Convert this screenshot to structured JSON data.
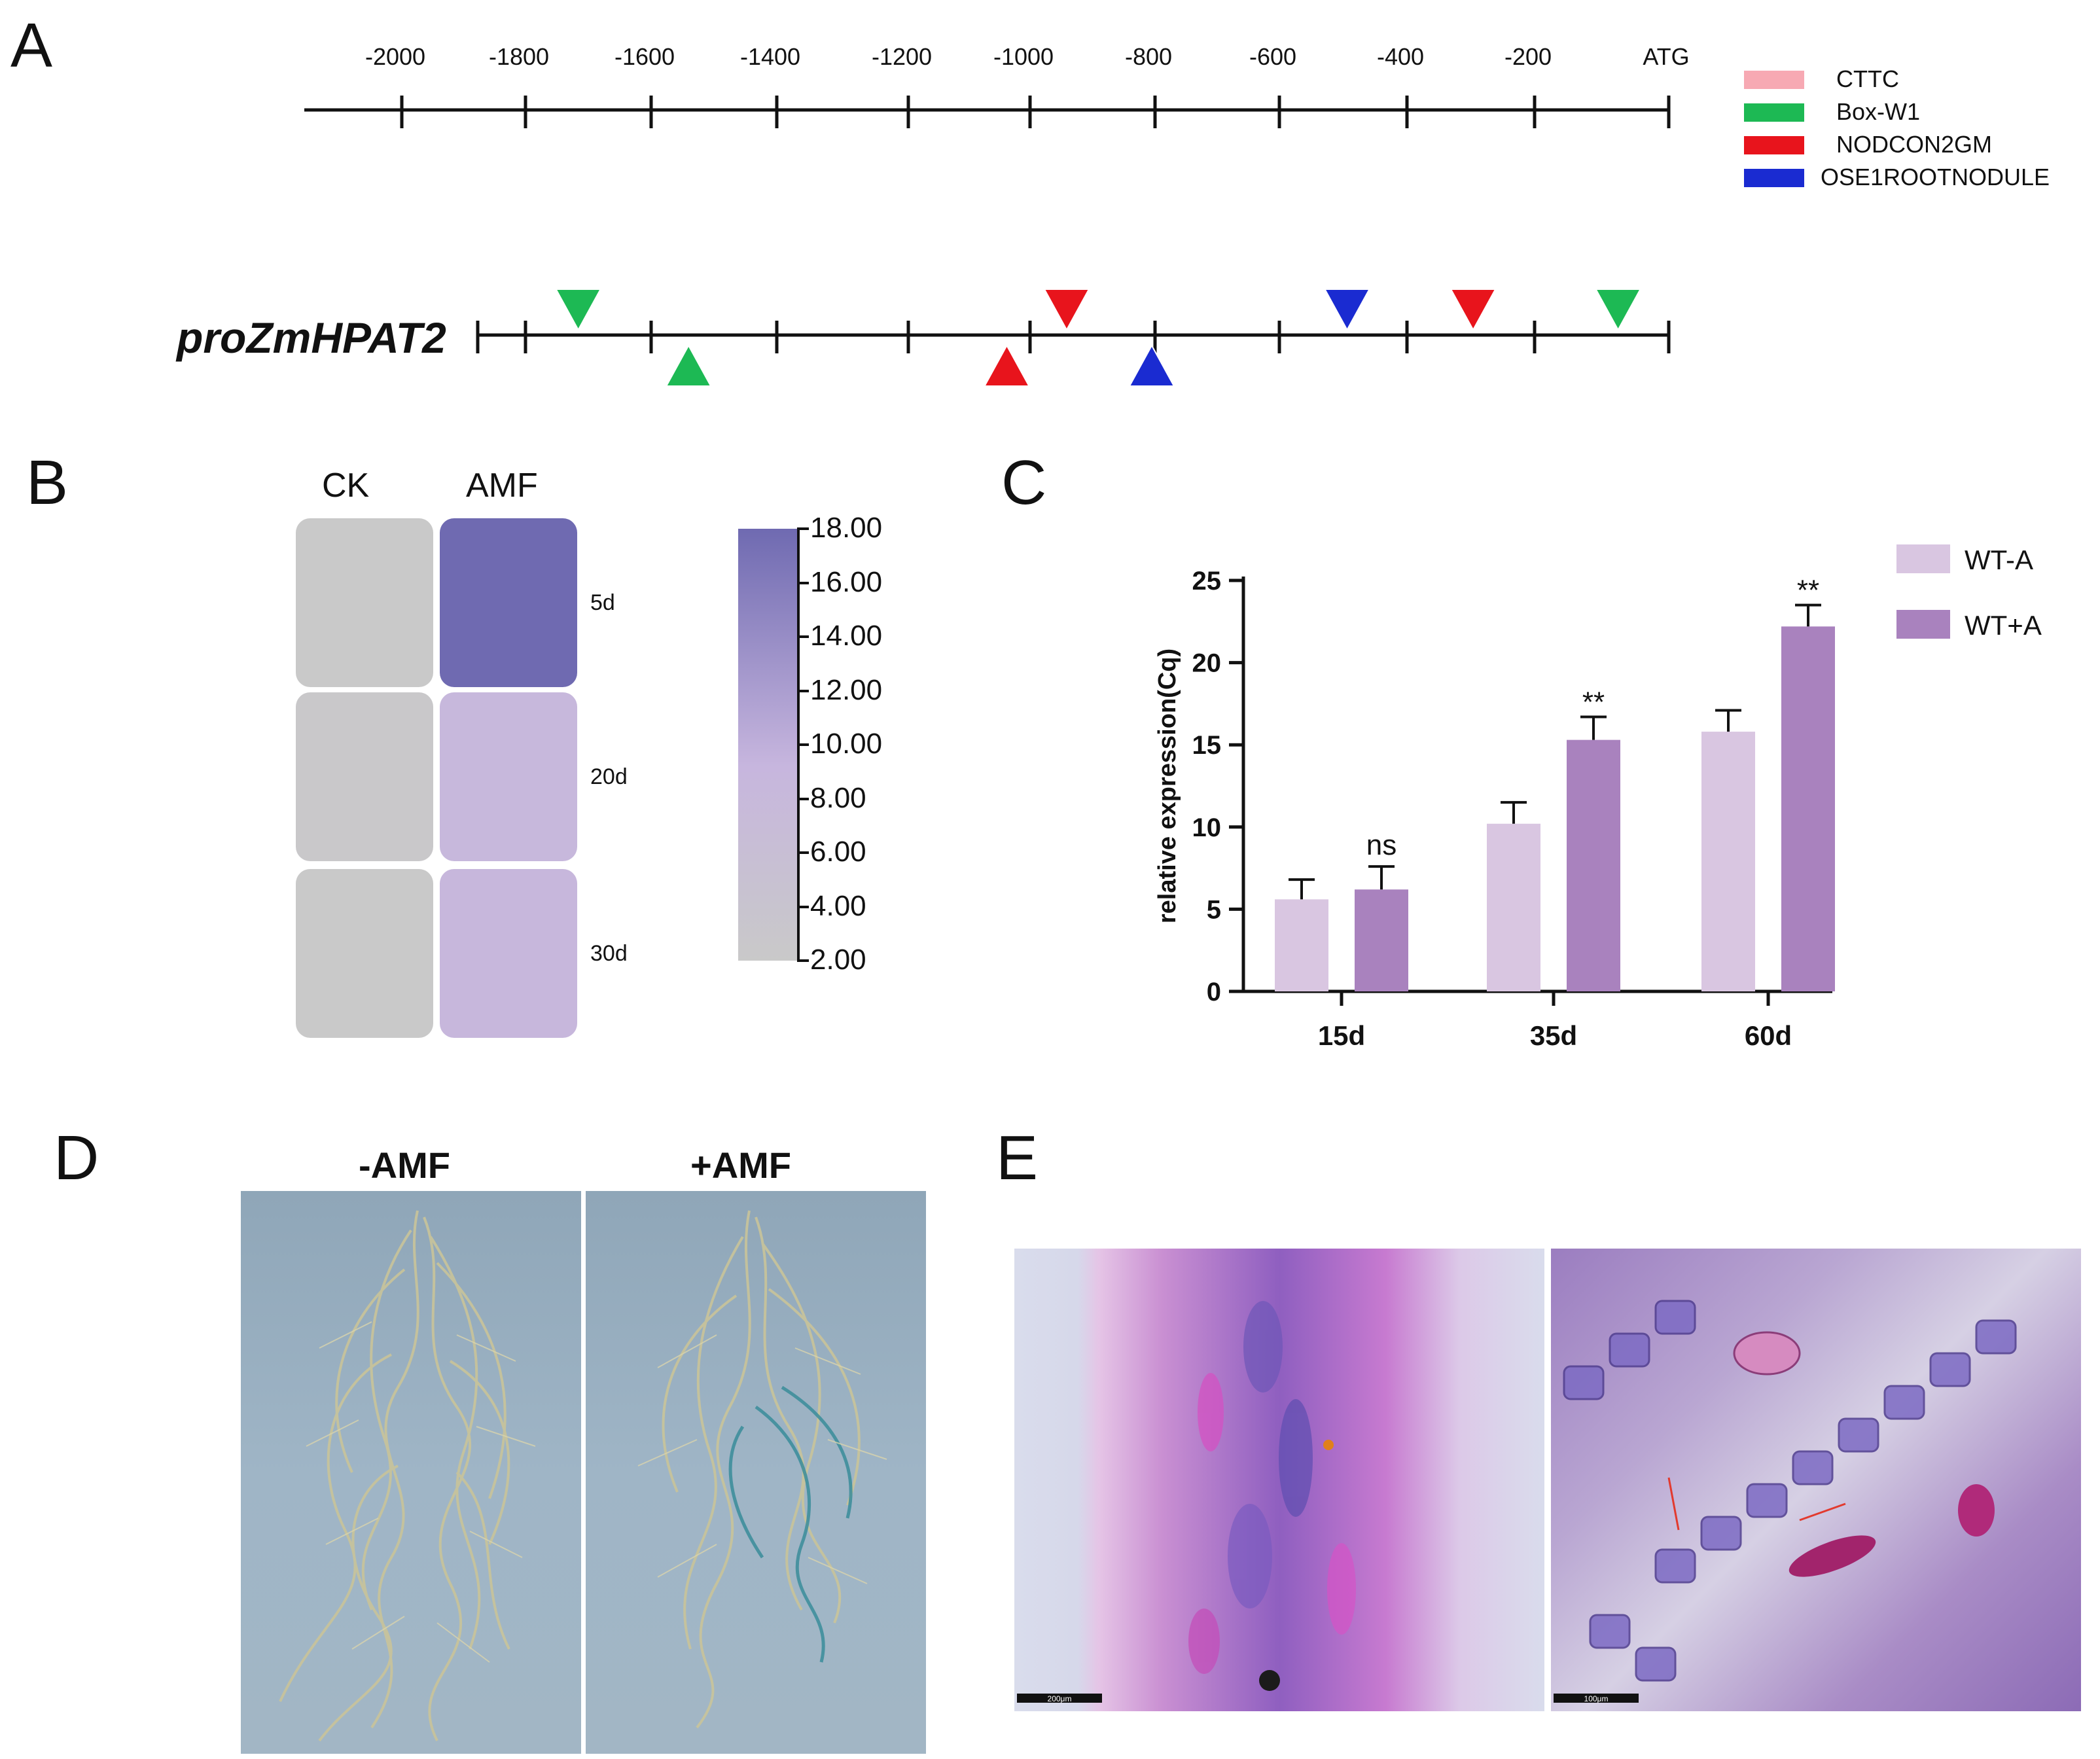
{
  "panels": {
    "A": {
      "letter": "A",
      "ruler": {
        "ticks": [
          "-2000",
          "-1800",
          "-1600",
          "-1400",
          "-1200",
          "-1000",
          "-800",
          "-600",
          "-400",
          "-200",
          "ATG"
        ]
      },
      "promoter_label": "proZmHPAT2",
      "legend": [
        {
          "label": "CTTC",
          "color": "#f7a9b3"
        },
        {
          "label": "Box-W1",
          "color": "#1db954"
        },
        {
          "label": "NODCON2GM",
          "color": "#e8141c"
        },
        {
          "label": "OSE1ROOTNODULE",
          "color": "#1a2bd1"
        }
      ],
      "markers": [
        {
          "element": "Box-W1",
          "position": -1720,
          "strand": "top",
          "color": "#1db954"
        },
        {
          "element": "Box-W1",
          "position": -1545,
          "strand": "bottom",
          "color": "#1db954"
        },
        {
          "element": "NODCON2GM",
          "position": -1040,
          "strand": "bottom",
          "color": "#e8141c"
        },
        {
          "element": "NODCON2GM",
          "position": -945,
          "strand": "top",
          "color": "#e8141c"
        },
        {
          "element": "OSE1ROOTNODULE",
          "position": -810,
          "strand": "bottom",
          "color": "#1a2bd1"
        },
        {
          "element": "OSE1ROOTNODULE",
          "position": -500,
          "strand": "top",
          "color": "#1a2bd1"
        },
        {
          "element": "NODCON2GM",
          "position": -300,
          "strand": "top",
          "color": "#e8141c"
        },
        {
          "element": "Box-W1",
          "position": -70,
          "strand": "top",
          "color": "#1db954"
        }
      ]
    },
    "B": {
      "letter": "B",
      "columns": [
        "CK",
        "AMF"
      ],
      "rows": [
        "5d",
        "20d",
        "30d"
      ],
      "values": [
        [
          2.0,
          18.0
        ],
        [
          2.3,
          9.2
        ],
        [
          2.1,
          9.4
        ]
      ],
      "colorbar": {
        "ticks": [
          "18.00",
          "16.00",
          "14.00",
          "12.00",
          "10.00",
          "8.00",
          "6.00",
          "4.00",
          "2.00"
        ],
        "min": 2,
        "max": 18,
        "color_low": "#c9c9c9",
        "color_mid": "#c7b6de",
        "color_high": "#6f6ab1"
      }
    },
    "C": {
      "letter": "C",
      "chart_data": {
        "type": "bar",
        "categories": [
          "15d",
          "35d",
          "60d"
        ],
        "series": [
          {
            "name": "WT-A",
            "values": [
              5.6,
              10.2,
              15.8
            ],
            "errors": [
              1.2,
              1.3,
              1.3
            ],
            "color": "#d9c6e1"
          },
          {
            "name": "WT+A",
            "values": [
              6.2,
              15.3,
              22.2
            ],
            "errors": [
              1.4,
              1.4,
              1.3
            ],
            "color": "#a982be"
          }
        ],
        "annotations": [
          "ns",
          "**",
          "**"
        ],
        "ylabel": "relative expression(Cq)",
        "ylim": [
          0,
          25
        ],
        "yticks": [
          "0",
          "5",
          "10",
          "15",
          "20",
          "25"
        ],
        "legend_position": "top-right"
      }
    },
    "D": {
      "letter": "D",
      "labels": [
        "-AMF",
        "+AMF"
      ]
    },
    "E": {
      "letter": "E",
      "scale_bars": [
        "200μm",
        "100μm"
      ]
    }
  }
}
